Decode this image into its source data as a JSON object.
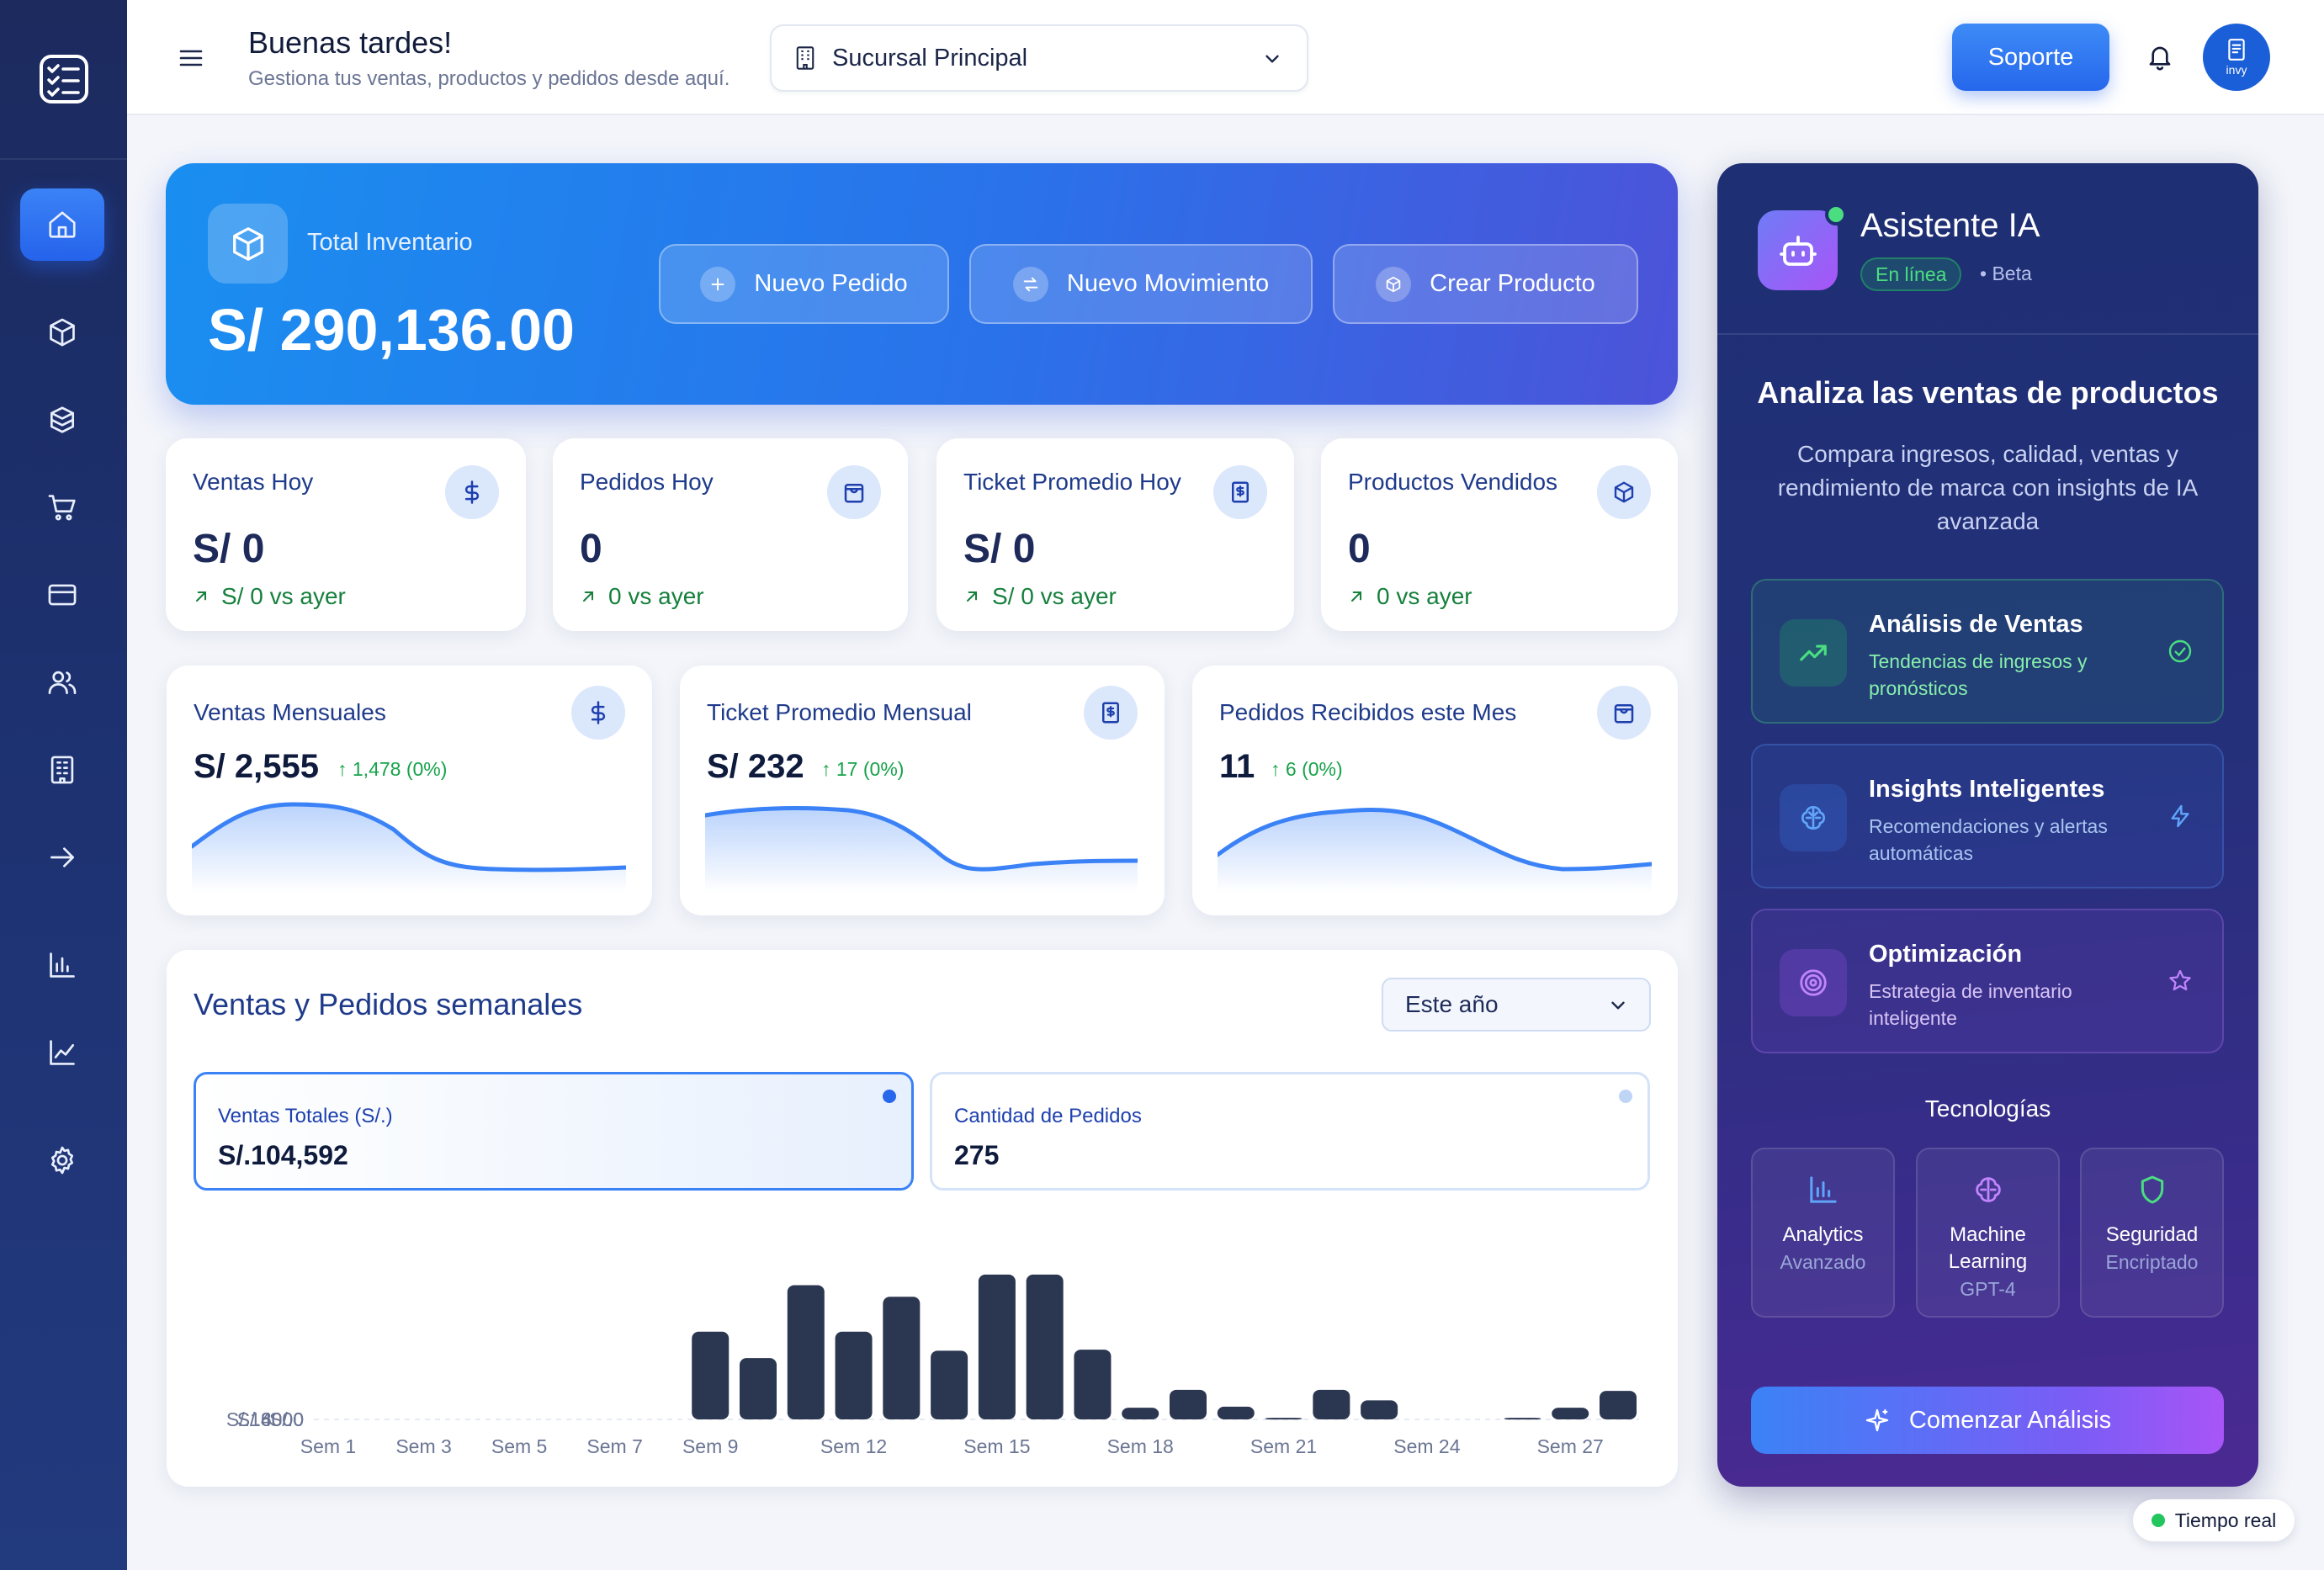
{
  "header": {
    "greeting": "Buenas tardes!",
    "subtitle": "Gestiona tus ventas, productos y pedidos desde aquí.",
    "branch": "Sucursal Principal",
    "support_label": "Soporte",
    "avatar_label": "invy"
  },
  "hero": {
    "label": "Total Inventario",
    "value": "S/ 290,136.00",
    "buttons": [
      "Nuevo Pedido",
      "Nuevo Movimiento",
      "Crear Producto"
    ]
  },
  "stats": [
    {
      "title": "Ventas Hoy",
      "value": "S/ 0",
      "trend": "S/ 0 vs ayer"
    },
    {
      "title": "Pedidos Hoy",
      "value": "0",
      "trend": "0 vs ayer"
    },
    {
      "title": "Ticket Promedio Hoy",
      "value": "S/ 0",
      "trend": "S/ 0 vs ayer"
    },
    {
      "title": "Productos Vendidos",
      "value": "0",
      "trend": "0 vs ayer"
    }
  ],
  "monthly": [
    {
      "title": "Ventas Mensuales",
      "value": "S/ 2,555",
      "delta": "1,478 (0%)"
    },
    {
      "title": "Ticket Promedio Mensual",
      "value": "S/ 232",
      "delta": "17 (0%)"
    },
    {
      "title": "Pedidos Recibidos este Mes",
      "value": "11",
      "delta": "6 (0%)"
    }
  ],
  "weekly": {
    "title": "Ventas y Pedidos semanales",
    "period": "Este año",
    "kpis": [
      {
        "label": "Ventas Totales (S/.)",
        "value": "S/.104,592"
      },
      {
        "label": "Cantidad de Pedidos",
        "value": "275"
      }
    ]
  },
  "chart_data": {
    "type": "bar",
    "x": [
      "Sem 1",
      "Sem 2",
      "Sem 3",
      "Sem 4",
      "Sem 5",
      "Sem 6",
      "Sem 7",
      "Sem 8",
      "Sem 9",
      "Sem 10",
      "Sem 11",
      "Sem 12",
      "Sem 13",
      "Sem 14",
      "Sem 15",
      "Sem 16",
      "Sem 17",
      "Sem 18",
      "Sem 19",
      "Sem 20",
      "Sem 21",
      "Sem 22",
      "Sem 23",
      "Sem 24",
      "Sem 25",
      "Sem 26",
      "Sem 27",
      "Sem 28"
    ],
    "x_tick_labels": [
      "Sem 1",
      "Sem 3",
      "Sem 5",
      "Sem 7",
      "Sem 9",
      "Sem 12",
      "Sem 15",
      "Sem 18",
      "Sem 21",
      "Sem 24",
      "Sem 27"
    ],
    "values": [
      0,
      0,
      0,
      0,
      0,
      0,
      0,
      0,
      8300,
      5800,
      12700,
      8300,
      11600,
      6500,
      13700,
      13700,
      6600,
      1100,
      2800,
      1200,
      150,
      2800,
      1800,
      0,
      0,
      150,
      1100,
      2700
    ],
    "y_ticks": [
      "S/.0",
      "S/.4000",
      "S/.8000",
      "S/.16000"
    ],
    "ylim": [
      0,
      16000
    ],
    "grid": true
  },
  "ai": {
    "title": "Asistente IA",
    "status": "En línea",
    "beta": "• Beta",
    "heading": "Analiza las ventas de productos",
    "description": "Compara ingresos, calidad, ventas y rendimiento de marca con insights de IA avanzada",
    "features": [
      {
        "title": "Análisis de Ventas",
        "desc": "Tendencias de ingresos y pronósticos"
      },
      {
        "title": "Insights Inteligentes",
        "desc": "Recomendaciones y alertas automáticas"
      },
      {
        "title": "Optimización",
        "desc": "Estrategia de inventario inteligente"
      }
    ],
    "tech_title": "Tecnologías",
    "tech": [
      {
        "name": "Analytics",
        "sub": "Avanzado"
      },
      {
        "name": "Machine Learning",
        "sub": "GPT-4"
      },
      {
        "name": "Seguridad",
        "sub": "Encriptado"
      }
    ],
    "cta": "Comenzar Análisis"
  },
  "realtime": "Tiempo real",
  "colors": {
    "accent": "#2667ec",
    "positive": "#16a34a",
    "bar": "#2b3650"
  }
}
